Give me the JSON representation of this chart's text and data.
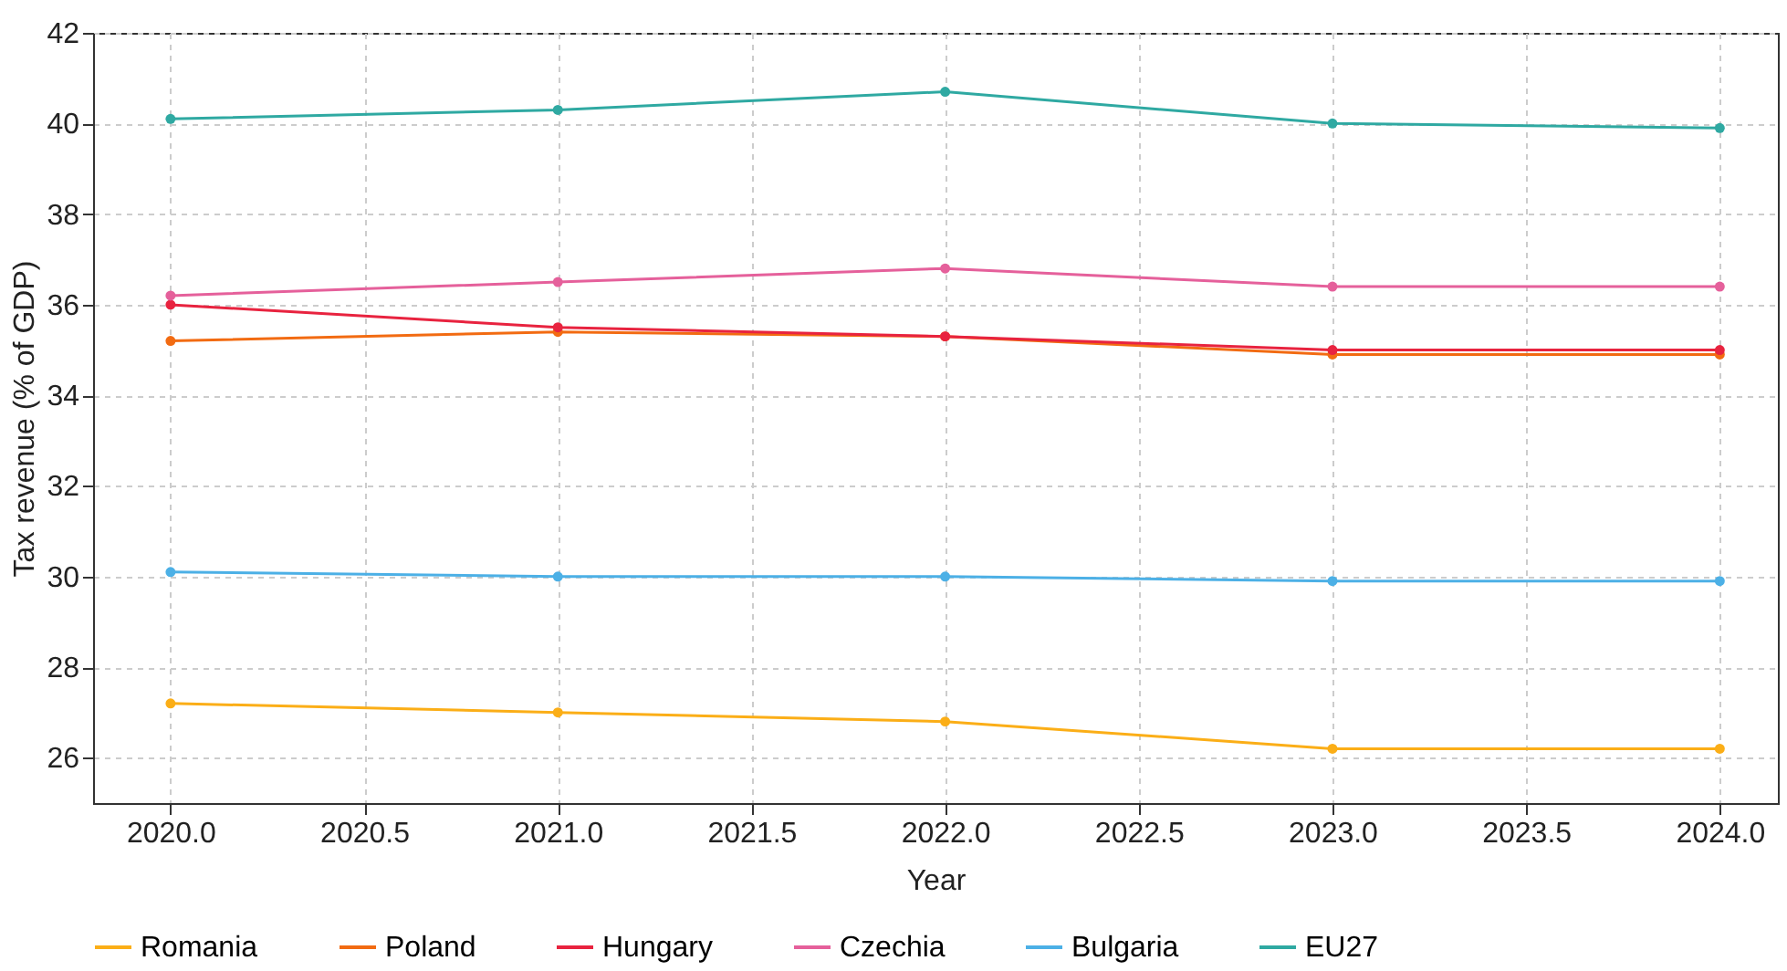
{
  "chart_data": {
    "type": "line",
    "xlabel": "Year",
    "ylabel": "Tax revenue (% of GDP)",
    "x": [
      2020,
      2021,
      2022,
      2023,
      2024
    ],
    "series": [
      {
        "name": "Romania",
        "color": "#fbae17",
        "values": [
          27.2,
          27.0,
          26.8,
          26.2,
          26.2
        ]
      },
      {
        "name": "Poland",
        "color": "#f26b12",
        "values": [
          35.2,
          35.4,
          35.3,
          34.9,
          34.9
        ]
      },
      {
        "name": "Hungary",
        "color": "#e8233f",
        "values": [
          36.0,
          35.5,
          35.3,
          35.0,
          35.0
        ]
      },
      {
        "name": "Czechia",
        "color": "#e5609b",
        "values": [
          36.2,
          36.5,
          36.8,
          36.4,
          36.4
        ]
      },
      {
        "name": "Bulgaria",
        "color": "#4cb0e6",
        "values": [
          30.1,
          30.0,
          30.0,
          29.9,
          29.9
        ]
      },
      {
        "name": "EU27",
        "color": "#2fa9a2",
        "values": [
          40.1,
          40.3,
          40.7,
          40.0,
          39.9
        ]
      }
    ],
    "xlim": [
      2019.8,
      2024.15
    ],
    "xticks": [
      {
        "value": 2020,
        "label": "2020.0"
      },
      {
        "value": 2020.5,
        "label": "2020.5"
      },
      {
        "value": 2021,
        "label": "2021.0"
      },
      {
        "value": 2021.5,
        "label": "2021.5"
      },
      {
        "value": 2022,
        "label": "2022.0"
      },
      {
        "value": 2022.5,
        "label": "2022.5"
      },
      {
        "value": 2023,
        "label": "2023.0"
      },
      {
        "value": 2023.5,
        "label": "2023.5"
      },
      {
        "value": 2024,
        "label": "2024.0"
      }
    ],
    "ylim": [
      25,
      42
    ],
    "yticks": [
      26,
      28,
      30,
      32,
      34,
      36,
      38,
      40,
      42
    ],
    "grid": true,
    "legend": "bottom",
    "marker": "circle",
    "line_style": "solid"
  }
}
